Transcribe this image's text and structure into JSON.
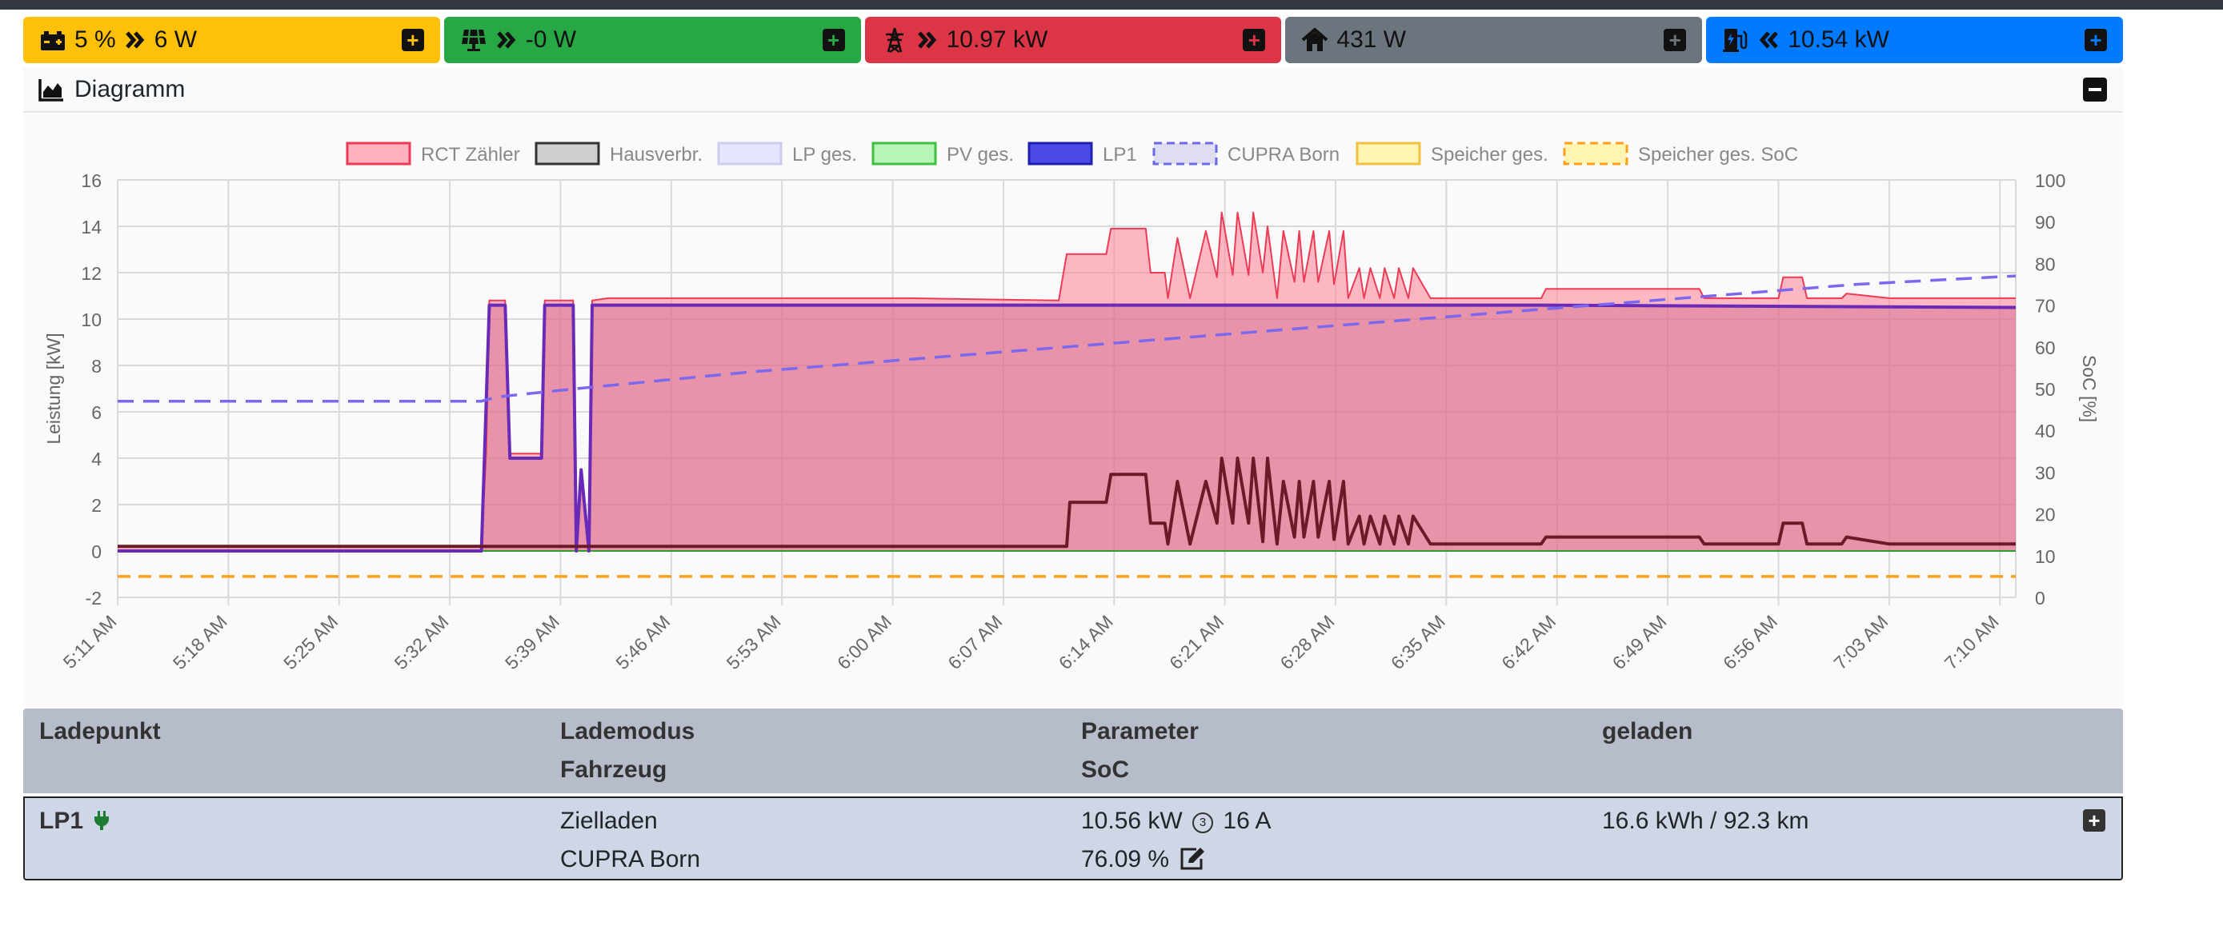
{
  "colors": {
    "battery": "#ffc107",
    "pv": "#28a745",
    "grid": "#dc3545",
    "house": "#6c757d",
    "charge": "#007bff"
  },
  "cards": {
    "battery": {
      "soc": "5 %",
      "power": "6 W",
      "icon": "car-battery-icon"
    },
    "pv": {
      "power": "-0 W",
      "icon": "solar-panel-icon"
    },
    "grid": {
      "power": "10.97 kW",
      "icon": "power-tower-icon"
    },
    "house": {
      "power": "431 W",
      "icon": "home-icon"
    },
    "charge": {
      "power": "10.54 kW",
      "icon": "charging-station-icon"
    }
  },
  "panel": {
    "title": "Diagramm"
  },
  "chart_data": {
    "type": "area",
    "legend_position": "top",
    "grid": true,
    "legend": [
      "RCT Zähler",
      "Hausverbr.",
      "LP ges.",
      "PV ges.",
      "LP1",
      "CUPRA Born",
      "Speicher ges.",
      "Speicher ges. SoC"
    ],
    "ylabel": "Leistung [kW]",
    "y2label": "SoC [%]",
    "ylim": [
      -2,
      16
    ],
    "y2lim": [
      0,
      100
    ],
    "yticks": [
      -2,
      0,
      2,
      4,
      6,
      8,
      10,
      12,
      14,
      16
    ],
    "y2ticks": [
      0,
      10,
      20,
      30,
      40,
      50,
      60,
      70,
      80,
      90,
      100
    ],
    "xticks": [
      "5:11 AM",
      "5:18 AM",
      "5:25 AM",
      "5:32 AM",
      "5:39 AM",
      "5:46 AM",
      "5:53 AM",
      "6:00 AM",
      "6:07 AM",
      "6:14 AM",
      "6:21 AM",
      "6:28 AM",
      "6:35 AM",
      "6:42 AM",
      "6:49 AM",
      "6:56 AM",
      "7:03 AM",
      "7:10 AM"
    ],
    "xrange_min": [
      0,
      120
    ],
    "series": [
      {
        "name": "RCT Zähler",
        "axis": "left",
        "color": "#ff6384",
        "x": [
          0,
          23,
          23.3,
          23.5,
          24.5,
          24.8,
          26.8,
          27,
          28.8,
          29,
          29.3,
          29.8,
          30,
          31,
          40,
          50,
          59.5,
          60,
          62.5,
          62.8,
          65,
          65.3,
          66.2,
          66.4,
          67,
          67.8,
          68.8,
          69.5,
          69.8,
          70.5,
          70.8,
          71.5,
          71.8,
          72.4,
          72.7,
          73.3,
          73.7,
          74.4,
          74.7,
          75,
          75.6,
          75.9,
          76.6,
          76.9,
          77.5,
          77.8,
          78.5,
          78.8,
          79.2,
          79.8,
          80.1,
          80.7,
          81,
          81.6,
          81.9,
          83,
          90,
          90.3,
          100,
          100.3,
          105,
          105.3,
          106.5,
          106.8,
          109,
          109.3,
          112,
          120
        ],
        "y": [
          0.2,
          0.2,
          4.2,
          10.8,
          10.8,
          4.2,
          4.2,
          10.8,
          10.8,
          0,
          3.5,
          0,
          10.8,
          10.9,
          10.9,
          10.9,
          10.8,
          12.8,
          12.8,
          13.9,
          13.9,
          12,
          12,
          10.9,
          13.5,
          10.9,
          13.8,
          11.8,
          14.6,
          11.9,
          14.6,
          11.9,
          14.6,
          12,
          14,
          10.9,
          13.8,
          11.6,
          13.8,
          11.6,
          13.8,
          11.6,
          13.8,
          11.5,
          13.8,
          10.9,
          12.2,
          10.9,
          12.2,
          10.9,
          12.2,
          10.9,
          12.2,
          10.9,
          12.2,
          10.9,
          10.9,
          11.3,
          11.3,
          10.9,
          10.9,
          11.8,
          11.8,
          10.9,
          10.9,
          11.1,
          10.9,
          10.9
        ]
      },
      {
        "name": "Hausverbr.",
        "axis": "left",
        "color": "#6b1a2a",
        "x": [
          0,
          23,
          60,
          60.2,
          62.5,
          62.8,
          65,
          65.3,
          66.2,
          66.4,
          67,
          67.8,
          68.8,
          69.5,
          69.8,
          70.5,
          70.8,
          71.5,
          71.8,
          72.4,
          72.7,
          73.3,
          73.7,
          74.4,
          74.7,
          75,
          75.6,
          75.9,
          76.6,
          76.9,
          77.5,
          77.8,
          78.5,
          78.8,
          79.2,
          79.8,
          80.1,
          80.7,
          81,
          81.6,
          81.9,
          83,
          90,
          90.3,
          100,
          100.3,
          105,
          105.3,
          106.5,
          106.8,
          109,
          109.3,
          112,
          120
        ],
        "y": [
          0.2,
          0.2,
          0.2,
          2.1,
          2.1,
          3.3,
          3.3,
          1.2,
          1.2,
          0.3,
          3.0,
          0.3,
          3.0,
          1.2,
          4.0,
          1.2,
          4.0,
          1.2,
          4.0,
          0.4,
          4.0,
          0.3,
          3.0,
          0.6,
          3.0,
          0.6,
          3.0,
          0.6,
          3.0,
          0.5,
          3.0,
          0.3,
          1.5,
          0.3,
          1.5,
          0.3,
          1.5,
          0.3,
          1.5,
          0.3,
          1.5,
          0.3,
          0.3,
          0.6,
          0.6,
          0.3,
          0.3,
          1.2,
          1.2,
          0.3,
          0.3,
          0.6,
          0.3,
          0.3
        ]
      },
      {
        "name": "LP1",
        "axis": "left",
        "color": "#3b2ad6",
        "x": [
          0,
          23,
          23.5,
          24.5,
          24.8,
          26.8,
          27,
          28.8,
          29,
          29.3,
          29.8,
          30,
          60,
          90,
          120
        ],
        "y": [
          0,
          0,
          10.6,
          10.6,
          4.0,
          4.0,
          10.6,
          10.6,
          0,
          3.5,
          0,
          10.6,
          10.6,
          10.6,
          10.5
        ]
      },
      {
        "name": "PV ges.",
        "axis": "left",
        "color": "#2ca02c",
        "x": [
          0,
          120
        ],
        "y": [
          0,
          0
        ]
      },
      {
        "name": "CUPRA Born",
        "axis": "right",
        "color": "#7b68ee",
        "x": [
          0,
          23,
          24,
          29,
          40,
          50,
          60,
          70,
          80,
          90,
          100,
          110,
          120
        ],
        "y": [
          47,
          47,
          48,
          50,
          54,
          57,
          60,
          63,
          66,
          69,
          72,
          75,
          77
        ]
      },
      {
        "name": "Speicher ges. SoC",
        "axis": "right",
        "color": "#ff9f1a",
        "x": [
          0,
          120
        ],
        "y": [
          5,
          5
        ]
      }
    ]
  },
  "table": {
    "headers": {
      "ladepunkt": "Ladepunkt",
      "lademodus": "Lademodus",
      "fahrzeug": "Fahrzeug",
      "parameter": "Parameter",
      "soc": "SoC",
      "geladen": "geladen"
    },
    "rows": [
      {
        "name": "LP1",
        "mode": "Zielladen",
        "vehicle": "CUPRA Born",
        "power": "10.56 kW",
        "phases": "3",
        "current": "16 A",
        "soc": "76.09 %",
        "charged": "16.6 kWh / 92.3 km"
      }
    ]
  }
}
